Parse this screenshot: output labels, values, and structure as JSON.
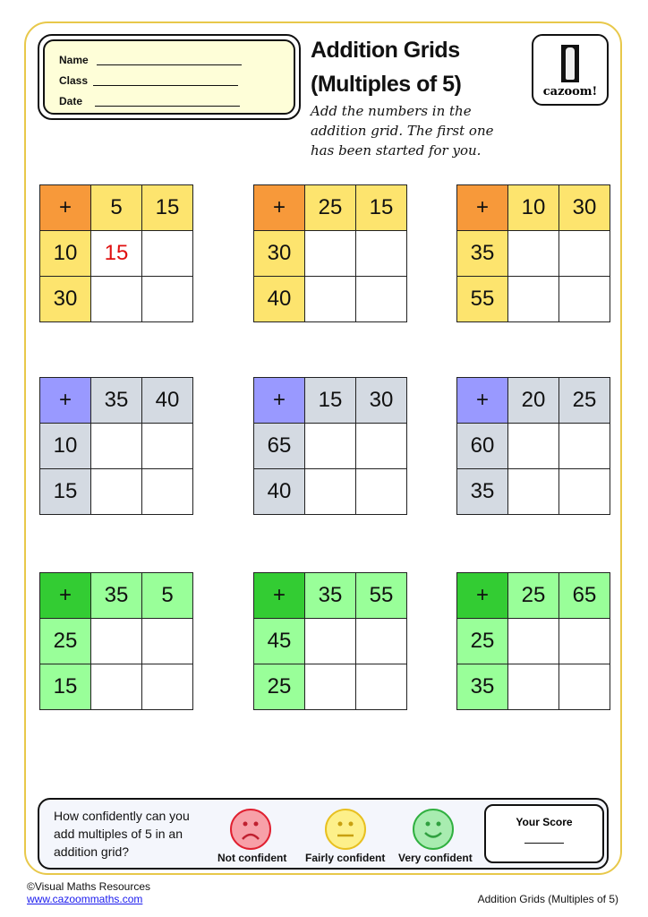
{
  "header": {
    "name_label": "Name",
    "class_label": "Class",
    "date_label": "Date",
    "title_line1": "Addition Grids",
    "title_line2": "(Multiples of 5)",
    "instructions": "Add the numbers in the addition grid. The first one has been started for you.",
    "logo_text": "cazoom!"
  },
  "colors": {
    "orange": "#f7993a",
    "yellow": "#fde46e",
    "purple": "#9999ff",
    "grey": "#d4dae2",
    "dark_green": "#33cc33",
    "light_green": "#99ff99",
    "answer_red": "#e01010"
  },
  "grids": [
    {
      "op": "+",
      "cols": [
        "5",
        "15"
      ],
      "rows": [
        "10",
        "30"
      ],
      "answers": [
        [
          "15",
          ""
        ],
        [
          "",
          ""
        ]
      ],
      "theme": "orange"
    },
    {
      "op": "+",
      "cols": [
        "25",
        "15"
      ],
      "rows": [
        "30",
        "40"
      ],
      "answers": [
        [
          "",
          ""
        ],
        [
          "",
          ""
        ]
      ],
      "theme": "orange"
    },
    {
      "op": "+",
      "cols": [
        "10",
        "30"
      ],
      "rows": [
        "35",
        "55"
      ],
      "answers": [
        [
          "",
          ""
        ],
        [
          "",
          ""
        ]
      ],
      "theme": "orange"
    },
    {
      "op": "+",
      "cols": [
        "35",
        "40"
      ],
      "rows": [
        "10",
        "15"
      ],
      "answers": [
        [
          "",
          ""
        ],
        [
          "",
          ""
        ]
      ],
      "theme": "purple"
    },
    {
      "op": "+",
      "cols": [
        "15",
        "30"
      ],
      "rows": [
        "65",
        "40"
      ],
      "answers": [
        [
          "",
          ""
        ],
        [
          "",
          ""
        ]
      ],
      "theme": "purple"
    },
    {
      "op": "+",
      "cols": [
        "20",
        "25"
      ],
      "rows": [
        "60",
        "35"
      ],
      "answers": [
        [
          "",
          ""
        ],
        [
          "",
          ""
        ]
      ],
      "theme": "purple"
    },
    {
      "op": "+",
      "cols": [
        "35",
        "5"
      ],
      "rows": [
        "25",
        "15"
      ],
      "answers": [
        [
          "",
          ""
        ],
        [
          "",
          ""
        ]
      ],
      "theme": "green"
    },
    {
      "op": "+",
      "cols": [
        "35",
        "55"
      ],
      "rows": [
        "45",
        "25"
      ],
      "answers": [
        [
          "",
          ""
        ],
        [
          "",
          ""
        ]
      ],
      "theme": "green"
    },
    {
      "op": "+",
      "cols": [
        "25",
        "65"
      ],
      "rows": [
        "25",
        "35"
      ],
      "answers": [
        [
          "",
          ""
        ],
        [
          "",
          ""
        ]
      ],
      "theme": "green"
    }
  ],
  "confidence": {
    "question": "How confidently can you add multiples of 5 in an addition grid?",
    "options": [
      "Not confident",
      "Fairly confident",
      "Very confident"
    ],
    "score_label": "Your Score"
  },
  "footer": {
    "copyright": "©Visual Maths Resources",
    "url": "www.cazoommaths.com",
    "page_title": "Addition Grids (Multiples of 5)"
  }
}
